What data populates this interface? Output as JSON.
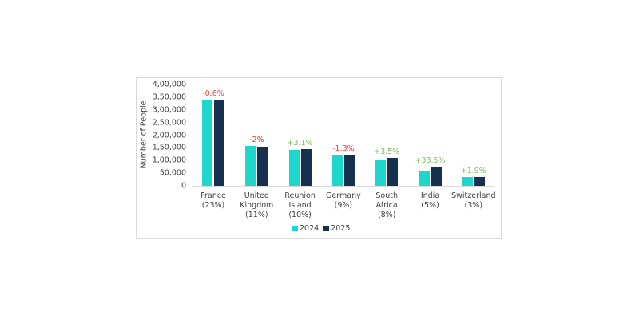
{
  "chart_data": {
    "type": "bar",
    "title": "",
    "xlabel": "",
    "ylabel": "Number of People",
    "ylim": [
      0,
      400000
    ],
    "yticks": [
      "0",
      "50,000",
      "1,00,000",
      "1,50,000",
      "2,00,000",
      "2,50,000",
      "3,00,000",
      "3,50,000",
      "4,00,000"
    ],
    "grid": false,
    "legend_position": "bottom",
    "categories": [
      "France\n(23%)",
      "United\nKingdom\n(11%)",
      "Reunion\nIsland\n(10%)",
      "Germany\n(9%)",
      "South\nAfrica\n(8%)",
      "India\n(5%)",
      "Switzerland\n(3%)"
    ],
    "series": [
      {
        "name": "2024",
        "color": "#1fd6cc",
        "values": [
          339000,
          158000,
          141000,
          124000,
          105000,
          57000,
          34000
        ]
      },
      {
        "name": "2025",
        "color": "#16304f",
        "values": [
          337000,
          155000,
          145000,
          122000,
          109000,
          76000,
          35000
        ]
      }
    ],
    "annotations": [
      {
        "category": "France",
        "text": "-0.6%",
        "color": "#e8413c"
      },
      {
        "category": "United Kingdom",
        "text": "-2%",
        "color": "#e8413c"
      },
      {
        "category": "Reunion Island",
        "text": "+3.1%",
        "color": "#7dbb5a"
      },
      {
        "category": "Germany",
        "text": "-1.3%",
        "color": "#e8413c"
      },
      {
        "category": "South Africa",
        "text": "+3.5%",
        "color": "#7dbb5a"
      },
      {
        "category": "India",
        "text": "+33.5%",
        "color": "#7dbb5a"
      },
      {
        "category": "Switzerland",
        "text": "+1.9%",
        "color": "#7dbb5a"
      }
    ]
  },
  "legend": {
    "items": [
      {
        "label": "2024",
        "color": "#1fd6cc"
      },
      {
        "label": "2025",
        "color": "#16304f"
      }
    ]
  }
}
